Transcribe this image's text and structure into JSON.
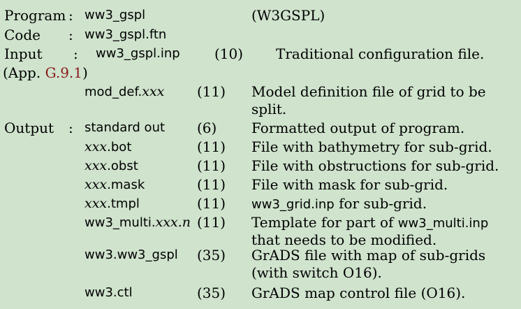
{
  "header": {
    "program_label": "Program",
    "program_name": "ww3_gspl",
    "program_tag": "(W3GSPL)",
    "code_label": "Code",
    "code_file": "ww3_gspl.ftn",
    "input_label": "Input",
    "colon": ":"
  },
  "input": {
    "file": "ww3_gspl.inp",
    "unit": "(10)",
    "desc": "Traditional configuration file.",
    "app_prefix": "(App. ",
    "app_ref": "G.9.1",
    "app_suffix": ")"
  },
  "mod_def": {
    "file_prefix": "mod_def.",
    "file_ext": "xxx",
    "unit": "(11)",
    "desc_line1": "Model definition file of grid to be",
    "desc_line2": "split."
  },
  "output": {
    "label": "Output",
    "rows": [
      {
        "file_pre": "standard out",
        "unit": "(6)",
        "desc": "Formatted output of program."
      },
      {
        "file_it": "xxx",
        "file_post": ".bot",
        "unit": "(11)",
        "desc": "File with bathymetry for sub-grid."
      },
      {
        "file_it": "xxx",
        "file_post": ".obst",
        "unit": "(11)",
        "desc": "File with obstructions for sub-grid."
      },
      {
        "file_it": "xxx",
        "file_post": ".mask",
        "unit": "(11)",
        "desc": "File with mask for sub-grid."
      },
      {
        "file_it": "xxx",
        "file_post": ".tmpl",
        "unit": "(11)",
        "desc_sans": "ww3_grid.inp",
        "desc_post": " for sub-grid."
      },
      {
        "file_pre": "ww3_multi.",
        "file_it": "xxx.n",
        "unit": "(11)",
        "desc_pre": "Template for part of ",
        "desc_sans": "ww3_multi.inp",
        "desc_line2": "that needs to be modified."
      },
      {
        "file_pre": "ww3.ww3_gspl",
        "unit": "(35)",
        "desc": "GrADS file with map of sub-grids",
        "desc_line2": "(with switch O16)."
      },
      {
        "file_pre": "ww3.ctl",
        "unit": "(35)",
        "desc": "GrADS map control file (O16)."
      }
    ]
  }
}
